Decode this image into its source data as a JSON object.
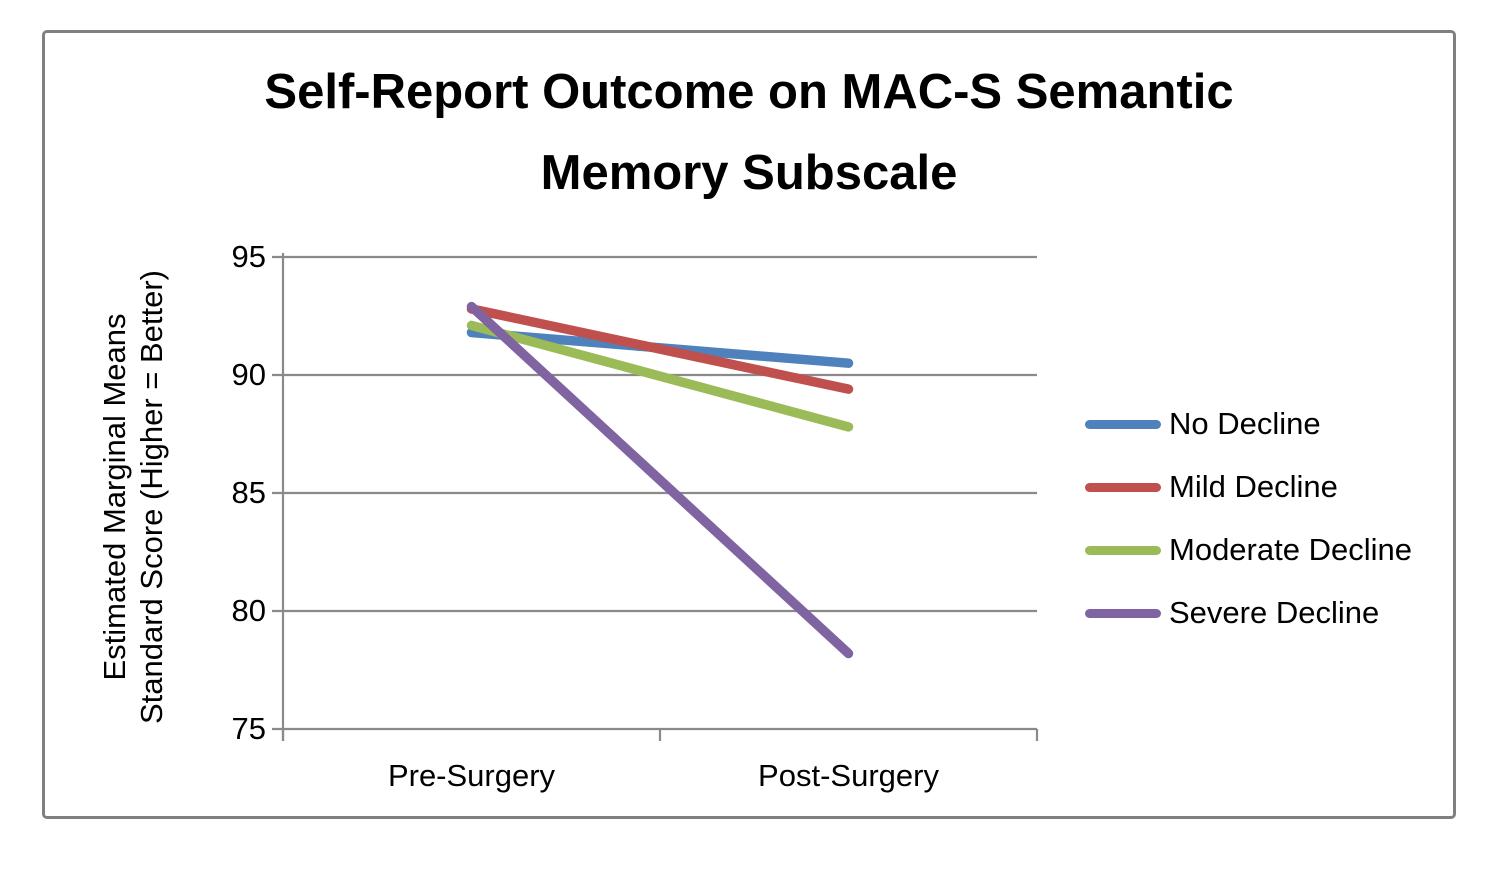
{
  "frame": {
    "border_color": "#808080",
    "background": "#ffffff"
  },
  "chart_data": {
    "type": "line",
    "title": "Self-Report Outcome on MAC-S Semantic Memory Subscale",
    "title_lines": [
      "Self-Report Outcome on MAC-S Semantic",
      "Memory Subscale"
    ],
    "ylabel": "Estimated Marginal Means Standard Score (Higher = Better)",
    "ylabel_lines": [
      "Estimated Marginal Means",
      "Standard Score (Higher = Better)"
    ],
    "xlabel": "",
    "categories": [
      "Pre-Surgery",
      "Post-Surgery"
    ],
    "series": [
      {
        "name": "No Decline",
        "values": [
          91.8,
          90.5
        ],
        "color": "#4F81BD"
      },
      {
        "name": "Mild Decline",
        "values": [
          92.8,
          89.4
        ],
        "color": "#C0504D"
      },
      {
        "name": "Moderate Decline",
        "values": [
          92.1,
          87.8
        ],
        "color": "#9BBB59"
      },
      {
        "name": "Severe Decline",
        "values": [
          92.9,
          78.2
        ],
        "color": "#8064A2"
      }
    ],
    "ylim": [
      75,
      95
    ],
    "yticks": [
      95,
      90,
      85,
      80,
      75
    ],
    "grid": true,
    "gridline_color": "#8A8A8A",
    "axis_color": "#8A8A8A",
    "legend_position": "right",
    "line_width": 9.5
  }
}
